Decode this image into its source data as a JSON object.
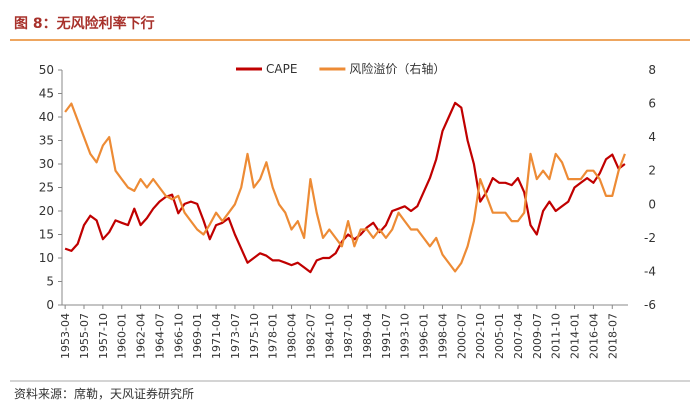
{
  "chart_data": {
    "type": "line",
    "title": "图 8：无风险利率下行",
    "source": "资料来源：席勒，天风证券研究所",
    "categories": [
      "1953-04",
      null,
      null,
      "1955-07",
      null,
      null,
      "1957-10",
      null,
      null,
      "1960-01",
      null,
      null,
      "1962-04",
      null,
      null,
      "1964-07",
      null,
      null,
      "1966-10",
      null,
      null,
      "1969-01",
      null,
      null,
      "1971-04",
      null,
      null,
      "1973-07",
      null,
      null,
      "1975-10",
      null,
      null,
      "1978-01",
      null,
      null,
      "1980-04",
      null,
      null,
      "1982-07",
      null,
      null,
      "1984-10",
      null,
      null,
      "1987-01",
      null,
      null,
      "1989-04",
      null,
      null,
      "1991-07",
      null,
      null,
      "1993-10",
      null,
      null,
      "1996-01",
      null,
      null,
      "1998-04",
      null,
      null,
      "2000-07",
      null,
      null,
      "2002-10",
      null,
      null,
      "2005-01",
      null,
      null,
      "2007-04",
      null,
      null,
      "2009-07",
      null,
      null,
      "2011-10",
      null,
      null,
      "2014-01",
      null,
      null,
      "2016-04",
      null,
      null,
      "2018-07",
      null,
      null
    ],
    "series": [
      {
        "name": "CAPE",
        "color": "#c00000",
        "values": [
          12,
          11.5,
          13,
          17,
          19,
          18,
          14,
          15.5,
          18,
          17.5,
          17,
          20.5,
          17,
          18.5,
          20.5,
          22,
          23,
          23.5,
          19.5,
          21.5,
          22,
          21.5,
          18,
          14,
          17,
          17.5,
          18.5,
          15,
          12,
          9,
          10,
          11,
          10.5,
          9.5,
          9.5,
          9,
          8.5,
          9,
          8,
          7,
          9.5,
          10,
          10,
          11,
          13.5,
          15,
          14,
          15,
          16.5,
          17.5,
          15.5,
          17,
          20,
          20.5,
          21,
          20,
          21,
          24,
          27,
          31,
          37,
          40,
          43,
          42,
          35,
          30,
          22,
          24,
          27,
          26,
          26,
          25.5,
          27,
          24,
          17,
          15,
          20,
          22,
          20,
          21,
          22,
          25,
          26,
          27,
          26,
          28,
          31,
          32,
          29,
          30
        ]
      },
      {
        "name": "风险溢价（右轴）",
        "color": "#ed8b35",
        "axis": "y2",
        "values": [
          5.5,
          6,
          5,
          4,
          3,
          2.5,
          3.5,
          4,
          2,
          1.5,
          1,
          0.8,
          1.5,
          1,
          1.5,
          1,
          0.5,
          0.3,
          0.5,
          -0.5,
          -1,
          -1.5,
          -1.8,
          -1.2,
          -0.5,
          -1,
          -0.5,
          0,
          1,
          3,
          1,
          1.5,
          2.5,
          1,
          0,
          -0.5,
          -1.5,
          -1,
          -2,
          1.5,
          -0.5,
          -2,
          -1.5,
          -2,
          -2.5,
          -1,
          -2.5,
          -1.5,
          -1.5,
          -2,
          -1.5,
          -2,
          -1.5,
          -0.5,
          -1,
          -1.5,
          -1.5,
          -2,
          -2.5,
          -2,
          -3,
          -3.5,
          -4,
          -3.5,
          -2.5,
          -1,
          1.5,
          0.5,
          -0.5,
          -0.5,
          -0.5,
          -1,
          -1,
          -0.5,
          3,
          1.5,
          2,
          1.5,
          3,
          2.5,
          1.5,
          1.5,
          1.5,
          2,
          2,
          1.5,
          0.5,
          0.5,
          2,
          3
        ]
      }
    ],
    "ylim": [
      0,
      50
    ],
    "yticks": [
      0,
      5,
      10,
      15,
      20,
      25,
      30,
      35,
      40,
      45,
      50
    ],
    "y2lim": [
      -6,
      8
    ],
    "y2ticks": [
      -6,
      -4,
      -2,
      0,
      2,
      4,
      6,
      8
    ],
    "legend": "top"
  }
}
